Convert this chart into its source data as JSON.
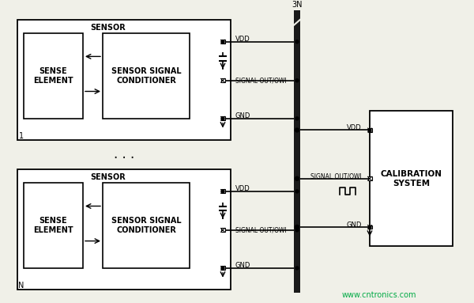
{
  "bg_color": "#f0f0e8",
  "line_color": "#000000",
  "box_color": "#ffffff",
  "text_color": "#000000",
  "bus_color": "#1a1a1a",
  "watermark": "www.cntronics.com",
  "watermark_color": "#00aa44",
  "label_3N": "3N",
  "label_1": "1",
  "label_N": "N",
  "sensor1_label": "SENSOR",
  "sensor2_label": "SENSOR",
  "sense1_label": "SENSE\nELEMENT",
  "sense2_label": "SENSE\nELEMENT",
  "ssc1_label": "SENSOR SIGNAL\nCONDITIONER",
  "ssc2_label": "SENSOR SIGNAL\nCONDITIONER",
  "cal_label": "CALIBRATION\nSYSTEM",
  "vdd_label": "VDD",
  "gnd_label": "GND",
  "signal_label": "SIGNAL OUT/OWI",
  "vdd_cal_label": "VDD",
  "gnd_cal_label": "GND",
  "signal_cal_label": "SIGNAL OUT/OWI"
}
